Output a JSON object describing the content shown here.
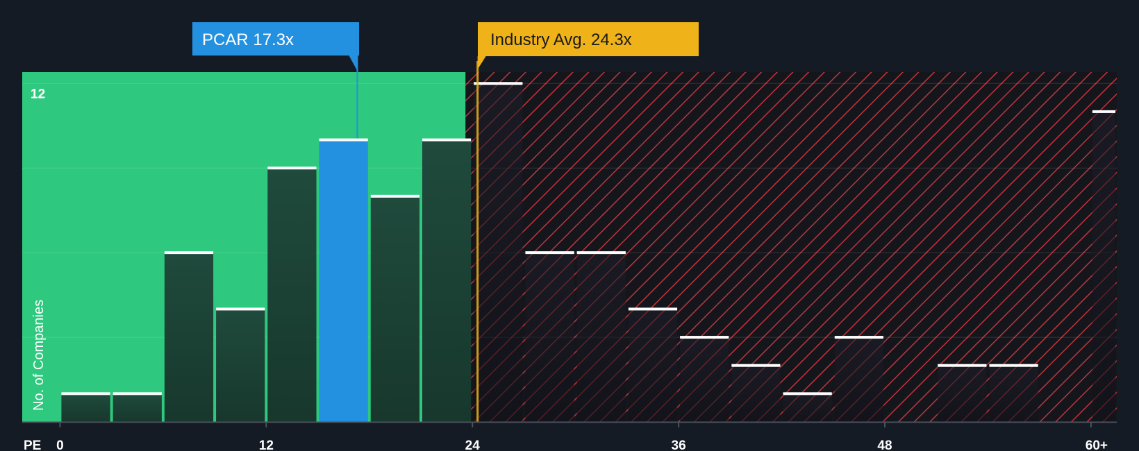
{
  "chart_data": {
    "type": "bar",
    "x_axis_label": "PE",
    "ylabel": "No. of Companies",
    "x_tick_labels": [
      "0",
      "12",
      "24",
      "36",
      "48",
      "60+"
    ],
    "x_tick_values": [
      0,
      12,
      24,
      36,
      48,
      60
    ],
    "y_tick_labels": [
      "12"
    ],
    "y_tick_values": [
      12
    ],
    "ylim": [
      0,
      12.4
    ],
    "xlim": [
      -2.2,
      61.5
    ],
    "bins": [
      {
        "start": 0,
        "end": 3,
        "value": 1
      },
      {
        "start": 3,
        "end": 6,
        "value": 1
      },
      {
        "start": 6,
        "end": 9,
        "value": 6
      },
      {
        "start": 9,
        "end": 12,
        "value": 4
      },
      {
        "start": 12,
        "end": 15,
        "value": 9
      },
      {
        "start": 15,
        "end": 18,
        "value": 10,
        "highlight": true
      },
      {
        "start": 18,
        "end": 21,
        "value": 8
      },
      {
        "start": 21,
        "end": 24,
        "value": 10
      },
      {
        "start": 24,
        "end": 27,
        "value": 12
      },
      {
        "start": 27,
        "end": 30,
        "value": 6
      },
      {
        "start": 30,
        "end": 33,
        "value": 6
      },
      {
        "start": 33,
        "end": 36,
        "value": 4
      },
      {
        "start": 36,
        "end": 39,
        "value": 3
      },
      {
        "start": 39,
        "end": 42,
        "value": 2
      },
      {
        "start": 42,
        "end": 45,
        "value": 1
      },
      {
        "start": 45,
        "end": 48,
        "value": 3
      },
      {
        "start": 48,
        "end": 51,
        "value": 0
      },
      {
        "start": 51,
        "end": 54,
        "value": 2
      },
      {
        "start": 54,
        "end": 57,
        "value": 2
      },
      {
        "start": 57,
        "end": 60,
        "value": 0
      },
      {
        "start": 60,
        "end": 61.5,
        "value": 11
      }
    ],
    "fair_region_end": 23.6,
    "company": {
      "label": "PCAR 17.3x",
      "value": 17.3
    },
    "industry_avg": {
      "label": "Industry Avg. 24.3x",
      "value": 24.3
    },
    "grid": true
  },
  "colors": {
    "background": "#151b24",
    "fair_region": "#2ec97e",
    "overvalued_region": "#15161c",
    "hatch": "#c0343c",
    "bar_in_fair": "#1f4a3c",
    "bar_in_over": "#1d1f2a",
    "highlight_bar": "#2390e0",
    "bar_top": "#ffffff",
    "company_callout": "#2390e0",
    "industry_callout": "#efb219",
    "industry_text": "#1a1a1a",
    "company_text": "#ffffff"
  }
}
